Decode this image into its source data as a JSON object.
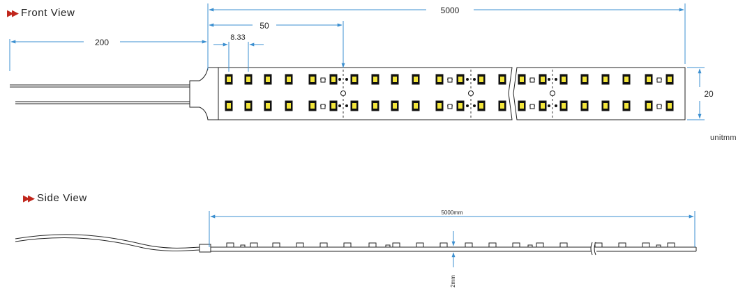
{
  "front_view": {
    "title": "Front View",
    "dim_total_length": "5000",
    "dim_segment": "50",
    "dim_led_pitch": "8.33",
    "dim_wire_length": "200",
    "dim_width": "20"
  },
  "side_view": {
    "title": "Side View",
    "dim_total_length": "5000mm",
    "dim_thickness": "2mm"
  },
  "unit_label": "unitmm",
  "colors": {
    "dimension": "#3b8fd0",
    "title_icon": "#c0261c",
    "led_fill": "#f3e63b",
    "outline": "#222222"
  }
}
